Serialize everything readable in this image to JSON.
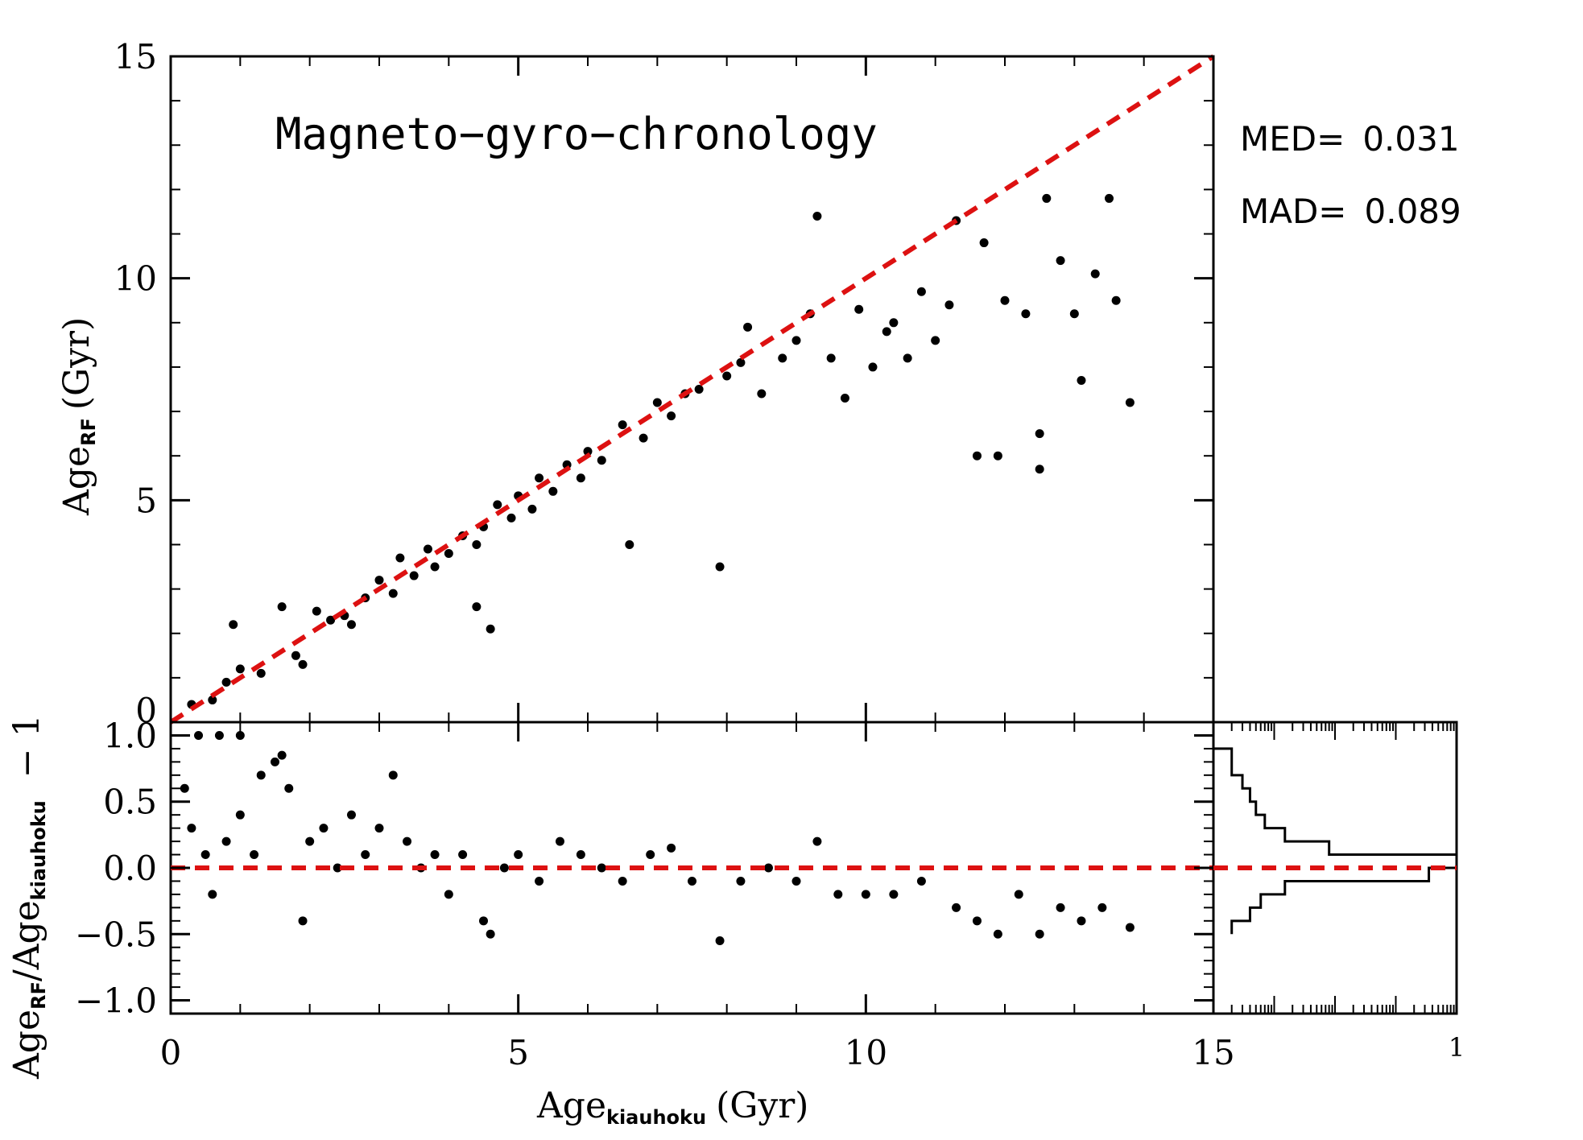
{
  "chart_data": [
    {
      "panel": "main",
      "type": "scatter",
      "title": "Magneto−gyro−chronology",
      "xlabel": "",
      "ylabel": "Age",
      "ylabel_sub": "RF",
      "ylabel_unit": "(Gyr)",
      "xlim": [
        0,
        15
      ],
      "ylim": [
        0,
        15
      ],
      "yticks": [
        "0",
        "5",
        "10",
        "15"
      ],
      "grid": false,
      "reference_line": {
        "style": "dashed",
        "color": "#dd1111",
        "slope": 1,
        "intercept": 0
      },
      "points": [
        [
          0.3,
          0.4
        ],
        [
          0.6,
          0.5
        ],
        [
          0.8,
          0.9
        ],
        [
          0.9,
          2.2
        ],
        [
          1.0,
          1.2
        ],
        [
          1.3,
          1.1
        ],
        [
          1.6,
          2.6
        ],
        [
          1.8,
          1.5
        ],
        [
          1.9,
          1.3
        ],
        [
          2.1,
          2.5
        ],
        [
          2.3,
          2.3
        ],
        [
          2.5,
          2.4
        ],
        [
          2.6,
          2.2
        ],
        [
          2.8,
          2.8
        ],
        [
          3.0,
          3.2
        ],
        [
          3.2,
          2.9
        ],
        [
          3.3,
          3.7
        ],
        [
          3.5,
          3.3
        ],
        [
          3.7,
          3.9
        ],
        [
          3.8,
          3.5
        ],
        [
          4.0,
          3.8
        ],
        [
          4.2,
          4.2
        ],
        [
          4.4,
          4.0
        ],
        [
          4.4,
          2.6
        ],
        [
          4.5,
          4.4
        ],
        [
          4.6,
          2.1
        ],
        [
          4.7,
          4.9
        ],
        [
          4.9,
          4.6
        ],
        [
          5.0,
          5.1
        ],
        [
          5.2,
          4.8
        ],
        [
          5.3,
          5.5
        ],
        [
          5.5,
          5.2
        ],
        [
          5.7,
          5.8
        ],
        [
          5.9,
          5.5
        ],
        [
          6.0,
          6.1
        ],
        [
          6.2,
          5.9
        ],
        [
          6.5,
          6.7
        ],
        [
          6.6,
          4.0
        ],
        [
          6.8,
          6.4
        ],
        [
          7.0,
          7.2
        ],
        [
          7.2,
          6.9
        ],
        [
          7.4,
          7.4
        ],
        [
          7.6,
          7.5
        ],
        [
          7.9,
          3.5
        ],
        [
          8.0,
          7.8
        ],
        [
          8.2,
          8.1
        ],
        [
          8.3,
          8.9
        ],
        [
          8.5,
          7.4
        ],
        [
          8.8,
          8.2
        ],
        [
          9.0,
          8.6
        ],
        [
          9.2,
          9.2
        ],
        [
          9.3,
          11.4
        ],
        [
          9.5,
          8.2
        ],
        [
          9.7,
          7.3
        ],
        [
          9.9,
          9.3
        ],
        [
          10.1,
          8.0
        ],
        [
          10.3,
          8.8
        ],
        [
          10.4,
          9.0
        ],
        [
          10.6,
          8.2
        ],
        [
          10.8,
          9.7
        ],
        [
          11.0,
          8.6
        ],
        [
          11.2,
          9.4
        ],
        [
          11.3,
          11.3
        ],
        [
          11.6,
          6.0
        ],
        [
          11.7,
          10.8
        ],
        [
          11.9,
          6.0
        ],
        [
          12.0,
          9.5
        ],
        [
          12.3,
          9.2
        ],
        [
          12.5,
          6.5
        ],
        [
          12.5,
          5.7
        ],
        [
          12.6,
          11.8
        ],
        [
          12.8,
          10.4
        ],
        [
          13.0,
          9.2
        ],
        [
          13.1,
          7.7
        ],
        [
          13.3,
          10.1
        ],
        [
          13.5,
          11.8
        ],
        [
          13.6,
          9.5
        ],
        [
          13.8,
          7.2
        ]
      ]
    },
    {
      "panel": "residuals",
      "type": "scatter",
      "xlabel": "Age",
      "xlabel_sub": "kiauhoku",
      "xlabel_unit": "(Gyr)",
      "ylabel": "Age",
      "ylabel_sub1": "RF",
      "ylabel_mid": "/Age",
      "ylabel_sub2": "kiauhoku",
      "ylabel_tail": " − 1",
      "xlim": [
        0,
        15
      ],
      "ylim": [
        -1.1,
        1.1
      ],
      "xticks": [
        "0",
        "5",
        "10",
        "15"
      ],
      "yticks": [
        "−1.0",
        "−0.5",
        "0.0",
        "0.5",
        "1.0"
      ],
      "grid": false,
      "reference_line": {
        "style": "dashed",
        "color": "#dd1111",
        "y": 0
      },
      "points": [
        [
          0.2,
          0.6
        ],
        [
          0.3,
          0.3
        ],
        [
          0.4,
          1.0
        ],
        [
          0.5,
          0.1
        ],
        [
          0.6,
          -0.2
        ],
        [
          0.7,
          1.0
        ],
        [
          0.8,
          0.2
        ],
        [
          1.0,
          0.4
        ],
        [
          1.0,
          1.0
        ],
        [
          1.2,
          0.1
        ],
        [
          1.3,
          0.7
        ],
        [
          1.5,
          0.8
        ],
        [
          1.6,
          0.85
        ],
        [
          1.7,
          0.6
        ],
        [
          1.9,
          -0.4
        ],
        [
          2.0,
          0.2
        ],
        [
          2.2,
          0.3
        ],
        [
          2.4,
          0.0
        ],
        [
          2.6,
          0.4
        ],
        [
          2.8,
          0.1
        ],
        [
          3.0,
          0.3
        ],
        [
          3.2,
          0.7
        ],
        [
          3.4,
          0.2
        ],
        [
          3.6,
          0.0
        ],
        [
          3.8,
          0.1
        ],
        [
          4.0,
          -0.2
        ],
        [
          4.2,
          0.1
        ],
        [
          4.5,
          -0.4
        ],
        [
          4.6,
          -0.5
        ],
        [
          4.8,
          0.0
        ],
        [
          5.0,
          0.1
        ],
        [
          5.3,
          -0.1
        ],
        [
          5.6,
          0.2
        ],
        [
          5.9,
          0.1
        ],
        [
          6.2,
          0.0
        ],
        [
          6.5,
          -0.1
        ],
        [
          6.9,
          0.1
        ],
        [
          7.2,
          0.15
        ],
        [
          7.5,
          -0.1
        ],
        [
          7.9,
          -0.55
        ],
        [
          8.2,
          -0.1
        ],
        [
          8.6,
          0.0
        ],
        [
          9.0,
          -0.1
        ],
        [
          9.3,
          0.2
        ],
        [
          9.6,
          -0.2
        ],
        [
          10.0,
          -0.2
        ],
        [
          10.4,
          -0.2
        ],
        [
          10.8,
          -0.1
        ],
        [
          11.3,
          -0.3
        ],
        [
          11.6,
          -0.4
        ],
        [
          11.9,
          -0.5
        ],
        [
          12.2,
          -0.2
        ],
        [
          12.5,
          -0.5
        ],
        [
          12.8,
          -0.3
        ],
        [
          13.1,
          -0.4
        ],
        [
          13.4,
          -0.3
        ],
        [
          13.8,
          -0.45
        ]
      ]
    },
    {
      "panel": "histogram",
      "type": "bar",
      "orientation": "horizontal",
      "scale": "log",
      "xtick_label": "1",
      "reference_line": {
        "style": "dashed",
        "color": "#dd1111",
        "y": 0
      },
      "bins": [
        {
          "lo": 0.9,
          "hi": 1.0,
          "frac": 0.0001
        },
        {
          "lo": 0.8,
          "hi": 0.9,
          "frac": 0.0002
        },
        {
          "lo": 0.7,
          "hi": 0.8,
          "frac": 0.0002
        },
        {
          "lo": 0.6,
          "hi": 0.7,
          "frac": 0.0003
        },
        {
          "lo": 0.5,
          "hi": 0.6,
          "frac": 0.0004
        },
        {
          "lo": 0.4,
          "hi": 0.5,
          "frac": 0.0005
        },
        {
          "lo": 0.3,
          "hi": 0.4,
          "frac": 0.0007
        },
        {
          "lo": 0.2,
          "hi": 0.3,
          "frac": 0.0015
        },
        {
          "lo": 0.1,
          "hi": 0.2,
          "frac": 0.008
        },
        {
          "lo": 0.0,
          "hi": 0.1,
          "frac": 1.0
        },
        {
          "lo": -0.1,
          "hi": 0.0,
          "frac": 0.35
        },
        {
          "lo": -0.2,
          "hi": -0.1,
          "frac": 0.0015
        },
        {
          "lo": -0.3,
          "hi": -0.2,
          "frac": 0.0006
        },
        {
          "lo": -0.4,
          "hi": -0.3,
          "frac": 0.0004
        },
        {
          "lo": -0.5,
          "hi": -0.4,
          "frac": 0.0002
        }
      ]
    }
  ],
  "stats": {
    "med_label": "MED=",
    "med_value": "0.031",
    "mad_label": "MAD=",
    "mad_value": "0.089"
  }
}
